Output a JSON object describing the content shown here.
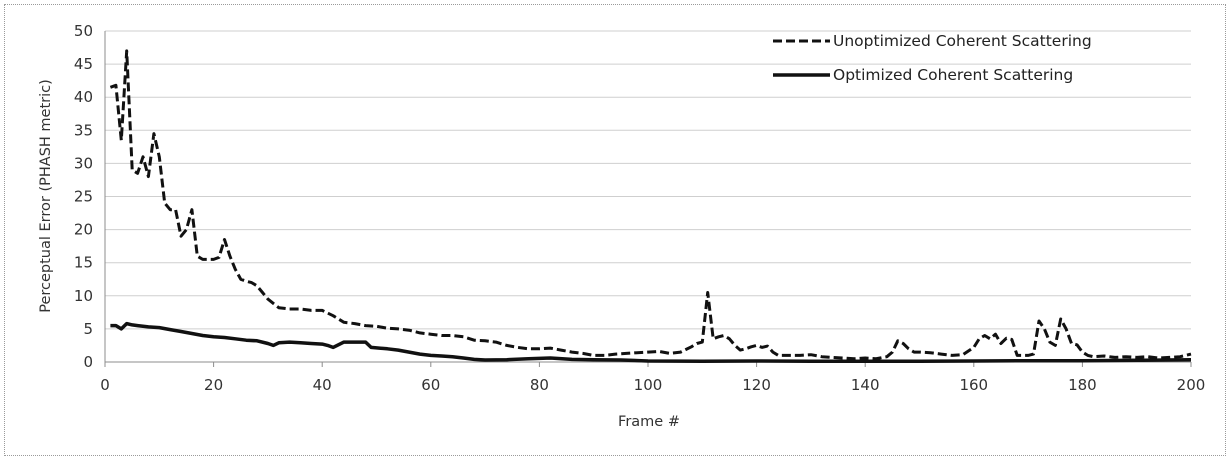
{
  "chart_data": {
    "type": "line",
    "title": "",
    "xlabel": "Frame #",
    "ylabel": "Perceptual Error (PHASH metric)",
    "xlim": [
      0,
      200
    ],
    "ylim": [
      0,
      50
    ],
    "x_ticks": [
      0,
      20,
      40,
      60,
      80,
      100,
      120,
      140,
      160,
      180,
      200
    ],
    "y_ticks": [
      0,
      5,
      10,
      15,
      20,
      25,
      30,
      35,
      40,
      45,
      50
    ],
    "grid": true,
    "legend_position": "top-right",
    "series": [
      {
        "name": "Unoptimized Coherent Scattering",
        "style": "dashed",
        "color": "#111111",
        "points": [
          [
            1,
            41.5
          ],
          [
            2,
            41.8
          ],
          [
            3,
            33.5
          ],
          [
            4,
            47
          ],
          [
            5,
            29
          ],
          [
            6,
            28.5
          ],
          [
            7,
            31
          ],
          [
            8,
            28
          ],
          [
            9,
            34.5
          ],
          [
            10,
            31
          ],
          [
            11,
            24
          ],
          [
            12,
            23
          ],
          [
            13,
            23
          ],
          [
            14,
            19
          ],
          [
            15,
            20
          ],
          [
            16,
            23
          ],
          [
            17,
            16
          ],
          [
            18,
            15.5
          ],
          [
            19,
            15.5
          ],
          [
            20,
            15.5
          ],
          [
            21,
            15.8
          ],
          [
            22,
            18.5
          ],
          [
            23,
            16
          ],
          [
            24,
            14
          ],
          [
            25,
            12.5
          ],
          [
            26,
            12.2
          ],
          [
            27,
            12
          ],
          [
            28,
            11.5
          ],
          [
            29,
            10.5
          ],
          [
            30,
            9.5
          ],
          [
            32,
            8.2
          ],
          [
            34,
            8
          ],
          [
            36,
            8
          ],
          [
            38,
            7.8
          ],
          [
            40,
            7.8
          ],
          [
            42,
            7
          ],
          [
            44,
            6
          ],
          [
            46,
            5.8
          ],
          [
            48,
            5.5
          ],
          [
            50,
            5.4
          ],
          [
            52,
            5.1
          ],
          [
            54,
            5
          ],
          [
            56,
            4.8
          ],
          [
            58,
            4.4
          ],
          [
            60,
            4.2
          ],
          [
            62,
            4
          ],
          [
            64,
            4
          ],
          [
            66,
            3.8
          ],
          [
            68,
            3.3
          ],
          [
            70,
            3.2
          ],
          [
            72,
            3
          ],
          [
            74,
            2.5
          ],
          [
            76,
            2.2
          ],
          [
            78,
            2
          ],
          [
            80,
            2
          ],
          [
            82,
            2.1
          ],
          [
            84,
            1.8
          ],
          [
            86,
            1.5
          ],
          [
            88,
            1.3
          ],
          [
            90,
            1
          ],
          [
            92,
            1
          ],
          [
            94,
            1.2
          ],
          [
            96,
            1.3
          ],
          [
            98,
            1.4
          ],
          [
            100,
            1.5
          ],
          [
            102,
            1.6
          ],
          [
            104,
            1.3
          ],
          [
            106,
            1.5
          ],
          [
            108,
            2.3
          ],
          [
            109,
            2.8
          ],
          [
            110,
            3
          ],
          [
            111,
            10.5
          ],
          [
            112,
            3.5
          ],
          [
            113,
            3.8
          ],
          [
            114,
            4
          ],
          [
            115,
            3.5
          ],
          [
            116,
            2.5
          ],
          [
            117,
            1.8
          ],
          [
            118,
            2
          ],
          [
            119,
            2.3
          ],
          [
            120,
            2.5
          ],
          [
            121,
            2.2
          ],
          [
            122,
            2.4
          ],
          [
            123,
            1.5
          ],
          [
            124,
            1
          ],
          [
            126,
            1
          ],
          [
            128,
            1
          ],
          [
            130,
            1.1
          ],
          [
            132,
            0.8
          ],
          [
            134,
            0.7
          ],
          [
            136,
            0.6
          ],
          [
            138,
            0.5
          ],
          [
            140,
            0.6
          ],
          [
            142,
            0.5
          ],
          [
            144,
            0.8
          ],
          [
            145,
            1.5
          ],
          [
            146,
            3.2
          ],
          [
            147,
            2.8
          ],
          [
            148,
            2
          ],
          [
            149,
            1.5
          ],
          [
            150,
            1.5
          ],
          [
            152,
            1.4
          ],
          [
            154,
            1.2
          ],
          [
            156,
            1
          ],
          [
            158,
            1.1
          ],
          [
            160,
            2.2
          ],
          [
            161,
            3.5
          ],
          [
            162,
            4
          ],
          [
            163,
            3.5
          ],
          [
            164,
            4.2
          ],
          [
            165,
            2.8
          ],
          [
            166,
            3.6
          ],
          [
            167,
            3.4
          ],
          [
            168,
            1
          ],
          [
            170,
            1
          ],
          [
            171,
            1.2
          ],
          [
            172,
            6.2
          ],
          [
            173,
            5
          ],
          [
            174,
            3
          ],
          [
            175,
            2.5
          ],
          [
            176,
            6.5
          ],
          [
            177,
            5
          ],
          [
            178,
            2.8
          ],
          [
            179,
            2.6
          ],
          [
            180,
            1.5
          ],
          [
            181,
            1
          ],
          [
            182,
            0.8
          ],
          [
            184,
            0.9
          ],
          [
            186,
            0.7
          ],
          [
            188,
            0.8
          ],
          [
            190,
            0.7
          ],
          [
            192,
            0.8
          ],
          [
            194,
            0.6
          ],
          [
            196,
            0.7
          ],
          [
            198,
            0.8
          ],
          [
            199,
            1
          ],
          [
            200,
            1.2
          ]
        ]
      },
      {
        "name": "Optimized Coherent Scattering",
        "style": "solid",
        "color": "#111111",
        "points": [
          [
            1,
            5.5
          ],
          [
            2,
            5.5
          ],
          [
            3,
            5
          ],
          [
            4,
            5.8
          ],
          [
            5,
            5.6
          ],
          [
            6,
            5.5
          ],
          [
            8,
            5.3
          ],
          [
            10,
            5.2
          ],
          [
            12,
            4.9
          ],
          [
            14,
            4.6
          ],
          [
            16,
            4.3
          ],
          [
            18,
            4
          ],
          [
            20,
            3.8
          ],
          [
            22,
            3.7
          ],
          [
            24,
            3.5
          ],
          [
            26,
            3.3
          ],
          [
            28,
            3.2
          ],
          [
            30,
            2.8
          ],
          [
            31,
            2.5
          ],
          [
            32,
            2.9
          ],
          [
            34,
            3
          ],
          [
            36,
            2.9
          ],
          [
            38,
            2.8
          ],
          [
            40,
            2.7
          ],
          [
            41,
            2.5
          ],
          [
            42,
            2.2
          ],
          [
            44,
            3
          ],
          [
            46,
            3
          ],
          [
            48,
            3
          ],
          [
            49,
            2.2
          ],
          [
            52,
            2
          ],
          [
            54,
            1.8
          ],
          [
            56,
            1.5
          ],
          [
            58,
            1.2
          ],
          [
            60,
            1
          ],
          [
            62,
            0.9
          ],
          [
            64,
            0.8
          ],
          [
            66,
            0.6
          ],
          [
            68,
            0.4
          ],
          [
            70,
            0.3
          ],
          [
            74,
            0.35
          ],
          [
            78,
            0.5
          ],
          [
            82,
            0.6
          ],
          [
            86,
            0.4
          ],
          [
            90,
            0.35
          ],
          [
            95,
            0.3
          ],
          [
            100,
            0.15
          ],
          [
            110,
            0.1
          ],
          [
            120,
            0.15
          ],
          [
            130,
            0.1
          ],
          [
            140,
            0.1
          ],
          [
            150,
            0.12
          ],
          [
            160,
            0.15
          ],
          [
            170,
            0.2
          ],
          [
            180,
            0.2
          ],
          [
            190,
            0.25
          ],
          [
            200,
            0.35
          ]
        ]
      }
    ]
  }
}
